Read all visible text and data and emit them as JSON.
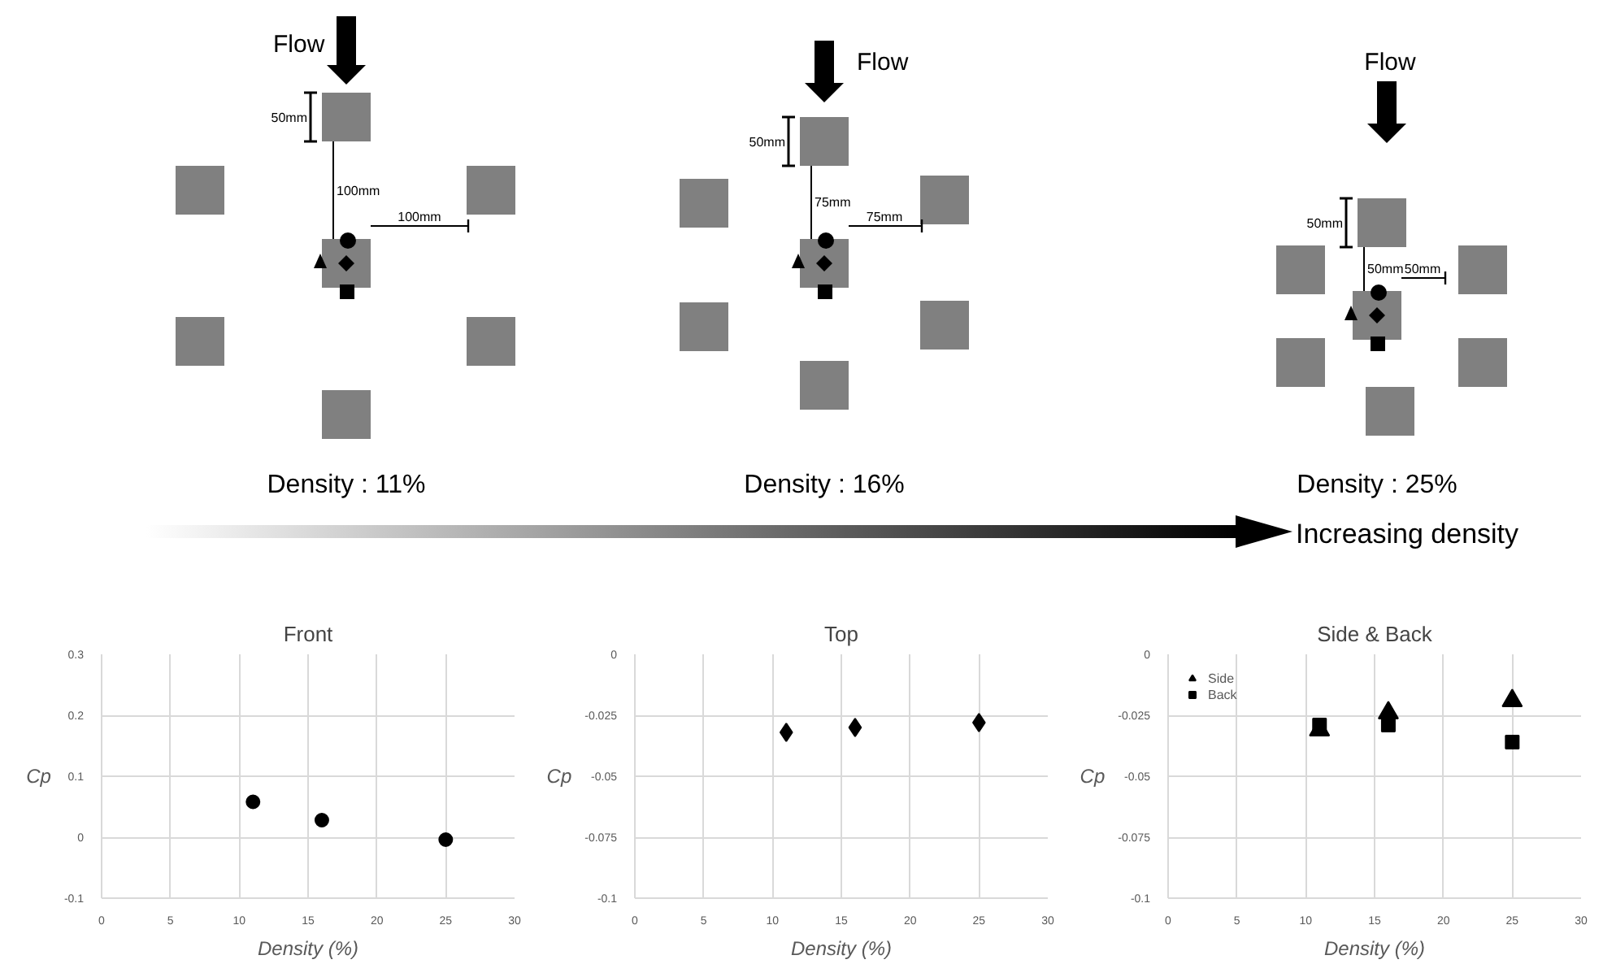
{
  "chart_data": [
    {
      "type": "other",
      "annotations": [
        "Flow",
        "50mm",
        "100mm",
        "100mm",
        "Density : 11%",
        "Flow",
        "50mm",
        "75mm",
        "75mm",
        "Density : 16%",
        "Flow",
        "50mm",
        "50mm",
        "50mm",
        "Density : 25%",
        "Increasing density"
      ]
    },
    {
      "type": "scatter",
      "title": "Front",
      "xlabel": "Density (%)",
      "ylabel": "Cp",
      "x": [
        11,
        16,
        25
      ],
      "values": [
        0.058,
        0.028,
        -0.004
      ],
      "color": "#000000",
      "marker": "circle",
      "xlim": [
        0,
        30
      ],
      "xticks": [
        0,
        5,
        10,
        15,
        20,
        25,
        30
      ],
      "ylim": [
        -0.1,
        0.3
      ],
      "yticks": [
        -0.1,
        0,
        0.1,
        0.2,
        0.3
      ],
      "grid": true
    },
    {
      "type": "scatter",
      "title": "Top",
      "xlabel": "Density (%)",
      "ylabel": "Cp",
      "x": [
        11,
        16,
        25
      ],
      "values": [
        -0.032,
        -0.03,
        -0.028
      ],
      "color": "#000000",
      "marker": "diamond",
      "xlim": [
        0,
        30
      ],
      "xticks": [
        0,
        5,
        10,
        15,
        20,
        25,
        30
      ],
      "ylim": [
        -0.1,
        0
      ],
      "yticks": [
        -0.1,
        -0.075,
        -0.05,
        -0.025,
        0
      ],
      "grid": true
    },
    {
      "type": "scatter",
      "title": "Side & Back",
      "xlabel": "Density (%)",
      "ylabel": "Cp",
      "x": [
        11,
        16,
        25
      ],
      "series": [
        {
          "name": "Side",
          "color": "#000000",
          "marker": "triangle",
          "values": [
            -0.031,
            -0.024,
            -0.019
          ]
        },
        {
          "name": "Back",
          "color": "#000000",
          "marker": "square",
          "values": [
            -0.029,
            -0.029,
            -0.036
          ]
        }
      ],
      "xlim": [
        0,
        30
      ],
      "xticks": [
        0,
        5,
        10,
        15,
        20,
        25,
        30
      ],
      "ylim": [
        -0.1,
        0
      ],
      "yticks": [
        -0.1,
        -0.075,
        -0.05,
        -0.025,
        0
      ],
      "grid": true,
      "legend": "top left"
    }
  ]
}
